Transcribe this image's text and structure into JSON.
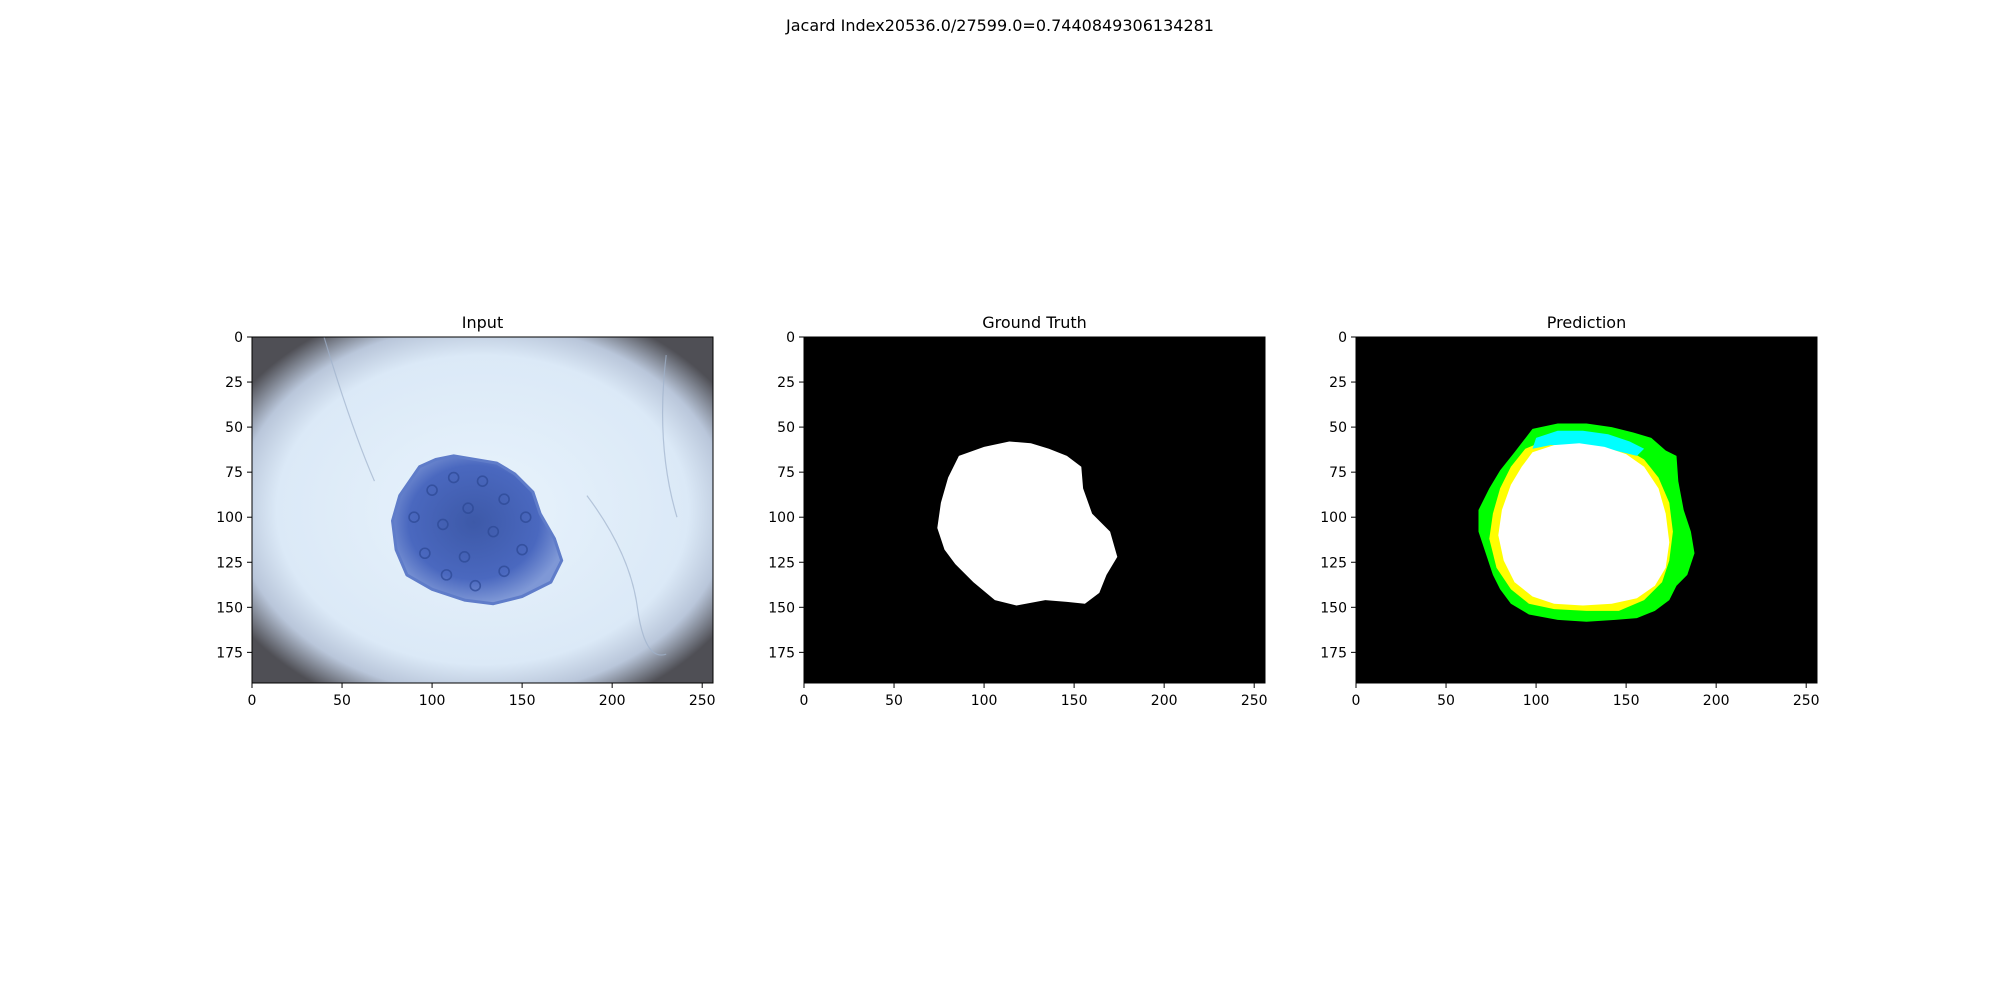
{
  "figure": {
    "suptitle": "Jacard Index20536.0/27599.0=0.7440849306134281"
  },
  "chart_data": [
    {
      "type": "image",
      "title": "Input",
      "xlim": [
        0,
        256
      ],
      "ylim": [
        192,
        0
      ],
      "xticks": [
        0,
        50,
        100,
        150,
        200,
        250
      ],
      "yticks": [
        0,
        25,
        50,
        75,
        100,
        125,
        150,
        175
      ],
      "colors": {
        "skin": "#dbe9f7",
        "lesion": "#4a68bf",
        "vignette": "#4f4f55"
      },
      "lesion_outline": [
        [
          93,
          72
        ],
        [
          102,
          68
        ],
        [
          112,
          66
        ],
        [
          124,
          68
        ],
        [
          136,
          70
        ],
        [
          146,
          76
        ],
        [
          156,
          86
        ],
        [
          160,
          98
        ],
        [
          168,
          112
        ],
        [
          172,
          124
        ],
        [
          166,
          136
        ],
        [
          150,
          144
        ],
        [
          134,
          148
        ],
        [
          118,
          146
        ],
        [
          100,
          140
        ],
        [
          86,
          132
        ],
        [
          80,
          118
        ],
        [
          78,
          102
        ],
        [
          82,
          88
        ]
      ]
    },
    {
      "type": "image",
      "title": "Ground Truth",
      "xlim": [
        0,
        256
      ],
      "ylim": [
        192,
        0
      ],
      "xticks": [
        0,
        50,
        100,
        150,
        200,
        250
      ],
      "yticks": [
        0,
        25,
        50,
        75,
        100,
        125,
        150,
        175
      ],
      "colors": {
        "background": "#000000",
        "mask": "#ffffff"
      },
      "mask_outline": [
        [
          86,
          66
        ],
        [
          100,
          61
        ],
        [
          114,
          58
        ],
        [
          126,
          59
        ],
        [
          136,
          62
        ],
        [
          146,
          66
        ],
        [
          154,
          72
        ],
        [
          155,
          84
        ],
        [
          160,
          98
        ],
        [
          170,
          108
        ],
        [
          174,
          122
        ],
        [
          168,
          132
        ],
        [
          164,
          142
        ],
        [
          156,
          148
        ],
        [
          146,
          147
        ],
        [
          134,
          146
        ],
        [
          118,
          149
        ],
        [
          106,
          146
        ],
        [
          94,
          136
        ],
        [
          84,
          126
        ],
        [
          78,
          118
        ],
        [
          74,
          106
        ],
        [
          76,
          92
        ],
        [
          80,
          78
        ]
      ]
    },
    {
      "type": "image",
      "title": "Prediction",
      "xlim": [
        0,
        256
      ],
      "ylim": [
        192,
        0
      ],
      "xticks": [
        0,
        50,
        100,
        150,
        200,
        250
      ],
      "yticks": [
        0,
        25,
        50,
        75,
        100,
        125,
        150,
        175
      ],
      "colors": {
        "background": "#000000",
        "false_positive": "#00ff00",
        "false_negative": "#ffff00",
        "overlap": "#ffffff",
        "other": "#00ffff"
      },
      "regions": [
        {
          "label": "false_positive",
          "outline": [
            [
              98,
              51
            ],
            [
              112,
              48
            ],
            [
              128,
              48
            ],
            [
              142,
              50
            ],
            [
              154,
              53
            ],
            [
              164,
              56
            ],
            [
              172,
              63
            ],
            [
              178,
              66
            ],
            [
              179,
              80
            ],
            [
              182,
              96
            ],
            [
              186,
              108
            ],
            [
              188,
              120
            ],
            [
              184,
              132
            ],
            [
              178,
              138
            ],
            [
              174,
              146
            ],
            [
              166,
              152
            ],
            [
              156,
              156
            ],
            [
              144,
              157
            ],
            [
              128,
              158
            ],
            [
              112,
              157
            ],
            [
              96,
              154
            ],
            [
              86,
              148
            ],
            [
              80,
              140
            ],
            [
              76,
              132
            ],
            [
              72,
              120
            ],
            [
              68,
              108
            ],
            [
              68,
              96
            ],
            [
              74,
              84
            ],
            [
              80,
              74
            ],
            [
              88,
              64
            ]
          ]
        },
        {
          "label": "false_negative",
          "outline": [
            [
              94,
              62
            ],
            [
              106,
              57
            ],
            [
              120,
              56
            ],
            [
              136,
              58
            ],
            [
              150,
              62
            ],
            [
              160,
              68
            ],
            [
              168,
              78
            ],
            [
              174,
              92
            ],
            [
              176,
              108
            ],
            [
              174,
              124
            ],
            [
              170,
              136
            ],
            [
              160,
              146
            ],
            [
              146,
              152
            ],
            [
              128,
              152
            ],
            [
              110,
              151
            ],
            [
              96,
              148
            ],
            [
              86,
              140
            ],
            [
              78,
              128
            ],
            [
              74,
              112
            ],
            [
              76,
              98
            ],
            [
              80,
              84
            ],
            [
              86,
              72
            ]
          ]
        },
        {
          "label": "other",
          "outline": [
            [
              100,
              56
            ],
            [
              112,
              52
            ],
            [
              126,
              52
            ],
            [
              140,
              54
            ],
            [
              152,
              58
            ],
            [
              160,
              62
            ],
            [
              156,
              66
            ],
            [
              140,
              62
            ],
            [
              124,
              60
            ],
            [
              108,
              60
            ],
            [
              98,
              62
            ]
          ]
        },
        {
          "label": "overlap",
          "outline": [
            [
              98,
              64
            ],
            [
              110,
              60
            ],
            [
              124,
              59
            ],
            [
              138,
              61
            ],
            [
              150,
              65
            ],
            [
              160,
              72
            ],
            [
              168,
              84
            ],
            [
              172,
              98
            ],
            [
              174,
              114
            ],
            [
              172,
              128
            ],
            [
              166,
              138
            ],
            [
              156,
              145
            ],
            [
              142,
              148
            ],
            [
              126,
              149
            ],
            [
              110,
              148
            ],
            [
              98,
              144
            ],
            [
              88,
              136
            ],
            [
              82,
              124
            ],
            [
              79,
              110
            ],
            [
              81,
              96
            ],
            [
              86,
              82
            ],
            [
              92,
              72
            ]
          ]
        }
      ]
    }
  ]
}
